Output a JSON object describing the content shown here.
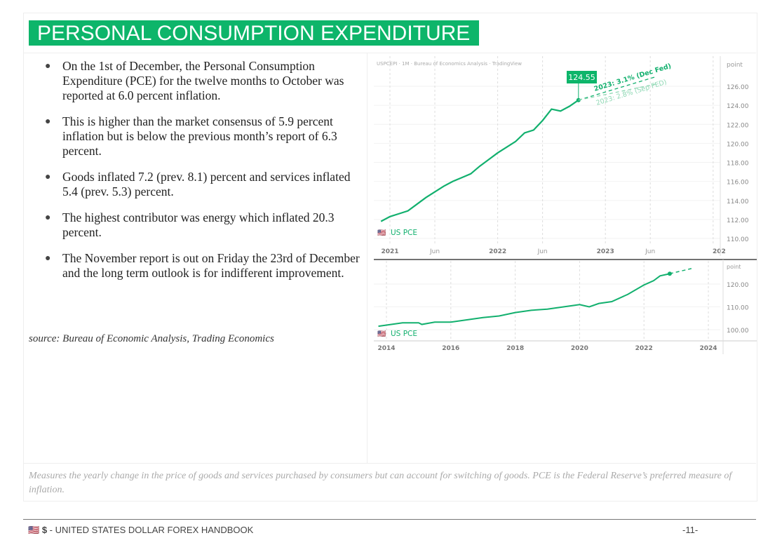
{
  "title": "PERSONAL CONSUMPTION EXPENDITURE",
  "bullets": [
    "On the 1st of December, the Personal Consumption Expenditure (PCE) for the twelve months to October was reported at 6.0 percent inflation.",
    "This is higher than the market consensus of 5.9 percent inflation but is below the previous month’s report of 6.3 percent.",
    "Goods inflated 7.2 (prev. 8.1) percent and services inflated 5.4 (prev. 5.3) percent.",
    "The highest contributor was energy which inflated 20.3 percent.",
    "The November report is out on Friday the 23rd of December and the long term outlook is for indifferent improvement."
  ],
  "source": "source: Bureau of Economic Analysis, Trading Economics",
  "caption": "Measures the yearly change in the price of goods and services purchased by consumers but can account for switching of goods. PCE is the Federal Reserve’s preferred measure of inflation.",
  "footer": {
    "flag": "🇺🇸",
    "symbol": "$",
    "text": " - UNITED STATES DOLLAR FOREX HANDBOOK",
    "page": "-11-"
  },
  "colors": {
    "accent": "#0db56a",
    "line": "#12b06e"
  },
  "chart_data": [
    {
      "type": "line",
      "title": "USPCEPI · 1M · Bureau of Economics Analysis · TradingView",
      "legend": "US PCE",
      "ylabel": "point",
      "ylim": [
        109,
        128
      ],
      "yticks": [
        "110.00",
        "112.00",
        "114.00",
        "116.00",
        "118.00",
        "120.00",
        "122.00",
        "124.00",
        "126.00"
      ],
      "xticks": [
        "2021",
        "Jun",
        "2022",
        "Jun",
        "2023",
        "Jun",
        "202"
      ],
      "x": [
        "2020-12",
        "2021-01",
        "2021-02",
        "2021-03",
        "2021-04",
        "2021-05",
        "2021-06",
        "2021-07",
        "2021-08",
        "2021-09",
        "2021-10",
        "2021-11",
        "2021-12",
        "2022-01",
        "2022-02",
        "2022-03",
        "2022-04",
        "2022-05",
        "2022-06",
        "2022-07",
        "2022-08",
        "2022-09",
        "2022-10"
      ],
      "values": [
        111.8,
        112.3,
        112.6,
        112.9,
        113.6,
        114.3,
        114.9,
        115.5,
        116.0,
        116.4,
        116.8,
        117.6,
        118.3,
        119.0,
        119.6,
        120.2,
        121.1,
        121.4,
        122.4,
        123.6,
        123.4,
        123.9,
        124.55
      ],
      "last_label": "124.55",
      "forecasts": [
        {
          "name": "2023: 3.1% (Dec Fed)",
          "end": "2023-06",
          "value": 127.0
        },
        {
          "name": "2023: 2.8% (Sep FED)",
          "end": "2023-06",
          "value": 126.6
        }
      ]
    },
    {
      "type": "line",
      "legend": "US PCE",
      "ylabel": "point",
      "ylim": [
        96,
        124
      ],
      "yticks": [
        "100.00",
        "110.00",
        "120.00"
      ],
      "xticks": [
        "2014",
        "2016",
        "2018",
        "2020",
        "2022",
        "2024"
      ],
      "x": [
        2013.75,
        2014,
        2014.5,
        2015,
        2015.1,
        2015.5,
        2016,
        2016.5,
        2017,
        2017.5,
        2018,
        2018.5,
        2019,
        2019.5,
        2020,
        2020.3,
        2020.6,
        2021,
        2021.5,
        2022,
        2022.3,
        2022.5,
        2022.8
      ],
      "values": [
        101.5,
        102,
        103,
        103,
        102.3,
        103.3,
        103.3,
        104.3,
        105.3,
        106,
        107.5,
        108.5,
        109,
        110,
        111,
        110,
        111.5,
        112.3,
        115.5,
        119.6,
        121.5,
        123.6,
        124.55
      ],
      "forecast": {
        "end": 2023.3,
        "value": 126.8
      }
    }
  ]
}
